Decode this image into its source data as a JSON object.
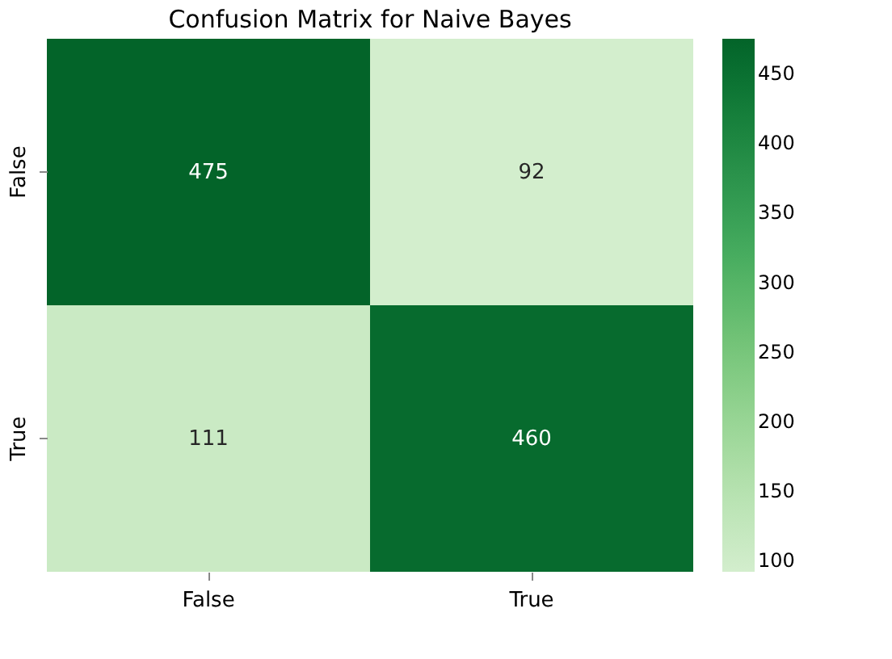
{
  "chart_data": {
    "type": "heatmap",
    "title": "Confusion Matrix for Naive Bayes",
    "categories": [
      "False",
      "True"
    ],
    "y_categories": [
      "False",
      "True"
    ],
    "cells": [
      [
        475,
        92
      ],
      [
        111,
        460
      ]
    ],
    "data_labels": true,
    "clim": [
      92,
      475
    ],
    "cticks": [
      100,
      150,
      200,
      250,
      300,
      350,
      400,
      450
    ]
  }
}
